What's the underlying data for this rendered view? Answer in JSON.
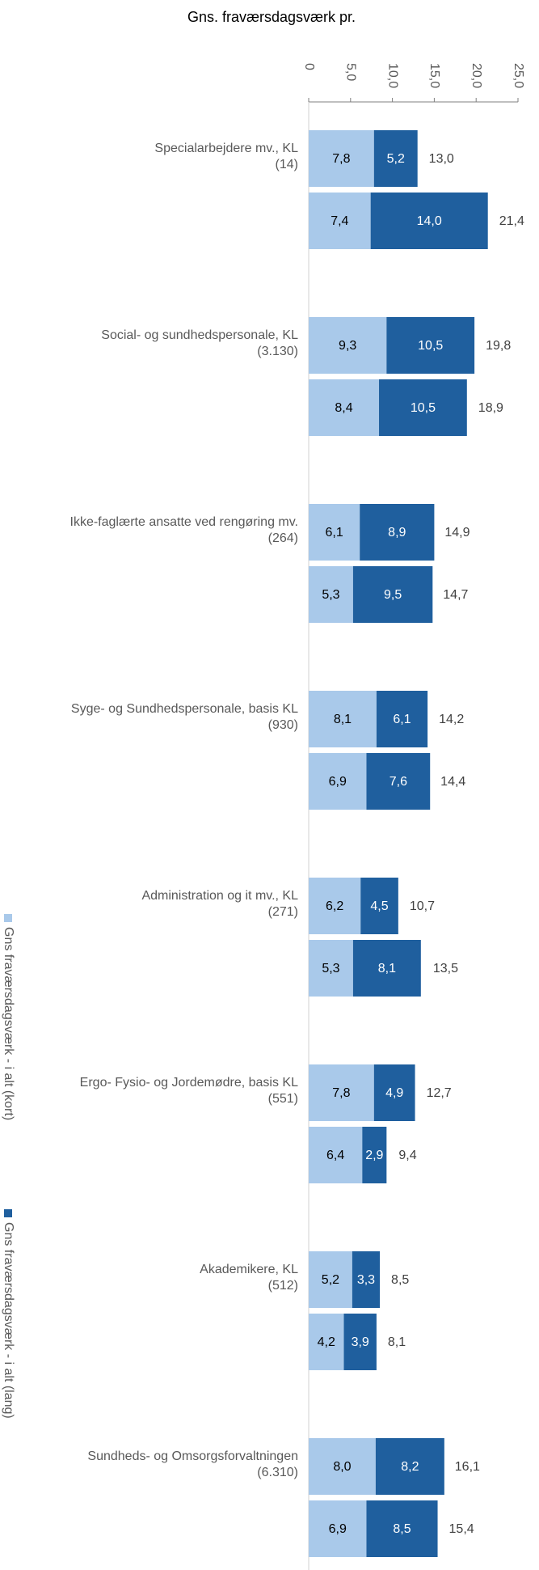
{
  "chart_data": {
    "type": "stacked_hbar",
    "title": "Gns. fraværsdagsværk pr.",
    "categories": [
      "Specialarbejdere mv., KL\n(14)",
      null,
      "Social- og sundhedspersonale, KL\n(3.130)",
      null,
      "Ikke-faglærte ansatte ved rengøring mv.\n(264)",
      null,
      "Syge- og Sundhedspersonale, basis KL\n(930)",
      null,
      "Administration og it mv., KL\n(271)",
      null,
      "Ergo- Fysio- og Jordemødre, basis KL\n(551)",
      null,
      "Akademikere, KL\n(512)",
      null,
      "Sundheds- og Omsorgsforvaltningen\n(6.310)",
      null
    ],
    "series": [
      {
        "name": "Gns fraværsdagsværk - i alt (kort)",
        "color": "#a9c9ea",
        "label_color": "#000000",
        "values": [
          7.8,
          7.4,
          9.3,
          8.4,
          6.1,
          5.3,
          8.1,
          6.9,
          6.2,
          5.3,
          7.8,
          6.4,
          5.2,
          4.2,
          8.0,
          6.9
        ],
        "value_labels": [
          "7,8",
          "7,4",
          "9,3",
          "8,4",
          "6,1",
          "5,3",
          "8,1",
          "6,9",
          "6,2",
          "5,3",
          "7,8",
          "6,4",
          "5,2",
          "4,2",
          "8,0",
          "6,9"
        ]
      },
      {
        "name": "Gns fraværsdagsværk - i alt (lang)",
        "color": "#1f5f9e",
        "label_color": "#ffffff",
        "values": [
          5.2,
          14.0,
          10.5,
          10.5,
          8.9,
          9.5,
          6.1,
          7.6,
          4.5,
          8.1,
          4.9,
          2.9,
          3.3,
          3.9,
          8.2,
          8.5
        ],
        "value_labels": [
          "5,2",
          "14,0",
          "10,5",
          "10,5",
          "8,9",
          "9,5",
          "6,1",
          "7,6",
          "4,5",
          "8,1",
          "4,9",
          "2,9",
          "3,3",
          "3,9",
          "8,2",
          "8,5"
        ]
      }
    ],
    "totals": {
      "values": [
        13.0,
        21.4,
        19.8,
        18.9,
        14.9,
        14.7,
        14.2,
        14.4,
        10.7,
        13.5,
        12.7,
        9.4,
        8.5,
        8.1,
        16.1,
        15.4
      ],
      "value_labels": [
        "13,0",
        "21,4",
        "19,8",
        "18,9",
        "14,9",
        "14,7",
        "14,2",
        "14,4",
        "10,7",
        "13,5",
        "12,7",
        "9,4",
        "8,5",
        "8,1",
        "16,1",
        "15,4"
      ]
    },
    "xlim": [
      0,
      25
    ],
    "xticks": [
      0,
      {
        "value": 5,
        "label": "5,0"
      },
      {
        "value": 10,
        "label": "10,0"
      },
      {
        "value": 15,
        "label": "15,0"
      },
      {
        "value": 20,
        "label": "20,0"
      },
      {
        "value": 25,
        "label": "25,0"
      }
    ],
    "legend": "left"
  }
}
